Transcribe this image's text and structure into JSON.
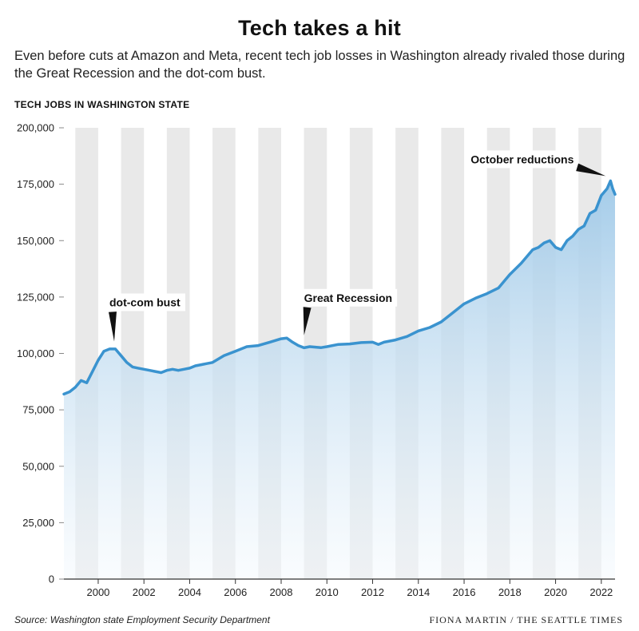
{
  "header": {
    "title": "Tech takes a hit",
    "subtitle": "Even before cuts at Amazon and Meta, recent tech job losses in Washington already rivaled those during the Great Recession and the dot-com bust.",
    "ylabel": "TECH JOBS IN WASHINGTON STATE"
  },
  "footer": {
    "source": "Source: Washington state Employment Security Department",
    "credit": "FIONA MARTIN / THE SEATTLE TIMES"
  },
  "colors": {
    "line": "#3a93cf",
    "band": "#e9e9e9",
    "fill_top": "#9fc9e8",
    "fill_bottom": "#f4f9fd"
  },
  "chart_data": {
    "type": "area",
    "title": "Tech takes a hit",
    "ylabel": "TECH JOBS IN WASHINGTON STATE",
    "xlim": [
      1998.5,
      2022.6
    ],
    "ylim": [
      0,
      200000
    ],
    "x_ticks": [
      2000,
      2002,
      2004,
      2006,
      2008,
      2010,
      2012,
      2014,
      2016,
      2018,
      2020,
      2022
    ],
    "x_tick_labels": [
      "2000",
      "2002",
      "2004",
      "2006",
      "2008",
      "2010",
      "2012",
      "2014",
      "2016",
      "2018",
      "2020",
      "2022"
    ],
    "y_ticks": [
      0,
      25000,
      50000,
      75000,
      100000,
      125000,
      150000,
      175000,
      200000
    ],
    "y_tick_labels": [
      "0",
      "25,000",
      "50,000",
      "75,000",
      "100,000",
      "125,000",
      "150,000",
      "175,000",
      "200,000"
    ],
    "grid": "alternating year bands",
    "series": [
      {
        "x": [
          1998.5,
          1998.75,
          1999.0,
          1999.25,
          1999.5,
          1999.75,
          2000.0,
          2000.25,
          2000.5,
          2000.75,
          2001.0,
          2001.25,
          2001.5,
          2001.75,
          2002.0,
          2002.25,
          2002.5,
          2002.75,
          2003.0,
          2003.25,
          2003.5,
          2003.75,
          2004.0,
          2004.25,
          2004.5,
          2004.75,
          2005.0,
          2005.5,
          2006.0,
          2006.5,
          2007.0,
          2007.5,
          2008.0,
          2008.25,
          2008.5,
          2008.75,
          2009.0,
          2009.25,
          2009.5,
          2009.75,
          2010.0,
          2010.5,
          2011.0,
          2011.5,
          2012.0,
          2012.25,
          2012.5,
          2013.0,
          2013.5,
          2014.0,
          2014.5,
          2015.0,
          2015.5,
          2016.0,
          2016.5,
          2017.0,
          2017.5,
          2018.0,
          2018.5,
          2019.0,
          2019.25,
          2019.5,
          2019.75,
          2020.0,
          2020.25,
          2020.5,
          2020.75,
          2021.0,
          2021.25,
          2021.5,
          2021.75,
          2022.0,
          2022.25,
          2022.4,
          2022.5,
          2022.6
        ],
        "values": [
          82000,
          83000,
          85000,
          88000,
          87000,
          92000,
          97000,
          101000,
          102000,
          102000,
          99000,
          96000,
          94000,
          93500,
          93000,
          92500,
          92000,
          91500,
          92500,
          93000,
          92500,
          93000,
          93500,
          94500,
          95000,
          95500,
          96000,
          99000,
          101000,
          103000,
          103500,
          105000,
          106500,
          106800,
          105000,
          103500,
          102500,
          103000,
          102800,
          102600,
          103000,
          104000,
          104200,
          104800,
          105000,
          104000,
          105000,
          106000,
          107500,
          110000,
          111500,
          114000,
          118000,
          122000,
          124500,
          126500,
          129000,
          135000,
          140000,
          146000,
          147000,
          149000,
          150000,
          147000,
          146000,
          150000,
          152000,
          155000,
          156500,
          162000,
          163500,
          170000,
          173000,
          176500,
          173000,
          170500
        ]
      }
    ],
    "annotations": [
      {
        "label": "dot-com bust",
        "x": 2000.7,
        "y": 102500
      },
      {
        "label": "Great Recession",
        "x": 2009.0,
        "y": 104500
      },
      {
        "label": "October reductions",
        "x": 2022.4,
        "y": 176500
      }
    ]
  }
}
